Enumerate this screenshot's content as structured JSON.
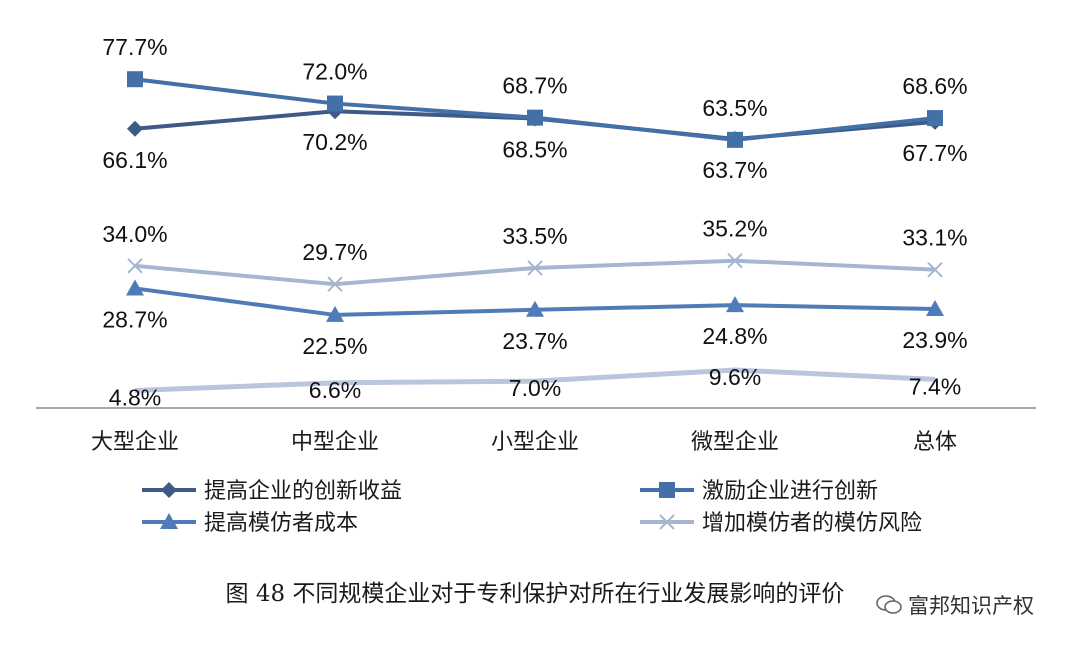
{
  "chart_data": {
    "type": "line",
    "categories": [
      "大型企业",
      "中型企业",
      "小型企业",
      "微型企业",
      "总体"
    ],
    "ylim": [
      0,
      85
    ],
    "grid": false,
    "legend_position": "bottom",
    "series": [
      {
        "name": "提高企业的创新收益",
        "values": [
          66.1,
          70.2,
          68.5,
          63.7,
          67.7
        ],
        "labels": [
          "66.1%",
          "70.2%",
          "68.5%",
          "63.7%",
          "67.7%"
        ],
        "color": "#3e5a86",
        "marker": "diamond",
        "label_position": "below"
      },
      {
        "name": "激励企业进行创新",
        "values": [
          77.7,
          72.0,
          68.7,
          63.5,
          68.6
        ],
        "labels": [
          "77.7%",
          "72.0%",
          "68.7%",
          "63.5%",
          "68.6%"
        ],
        "color": "#4470a8",
        "marker": "square",
        "label_position": "above"
      },
      {
        "name": "提高模仿者成本",
        "values": [
          28.7,
          22.5,
          23.7,
          24.8,
          23.9
        ],
        "labels": [
          "28.7%",
          "22.5%",
          "23.7%",
          "24.8%",
          "23.9%"
        ],
        "color": "#4f7cb8",
        "marker": "triangle",
        "label_position": "below"
      },
      {
        "name": "增加模仿者的模仿风险",
        "values": [
          34.0,
          29.7,
          33.5,
          35.2,
          33.1
        ],
        "labels": [
          "34.0%",
          "29.7%",
          "33.5%",
          "35.2%",
          "33.1%"
        ],
        "color": "#a6b6d1",
        "marker": "x",
        "label_position": "above"
      },
      {
        "name": "",
        "values": [
          4.8,
          6.6,
          7.0,
          9.6,
          7.4
        ],
        "labels": [
          "4.8%",
          "6.6%",
          "7.0%",
          "9.6%",
          "7.4%"
        ],
        "color": "#b9c6dc",
        "marker": "none",
        "label_position": "below"
      }
    ]
  },
  "caption": "图 48  不同规模企业对于专利保护对所在行业发展影响的评价",
  "watermark": "富邦知识产权"
}
